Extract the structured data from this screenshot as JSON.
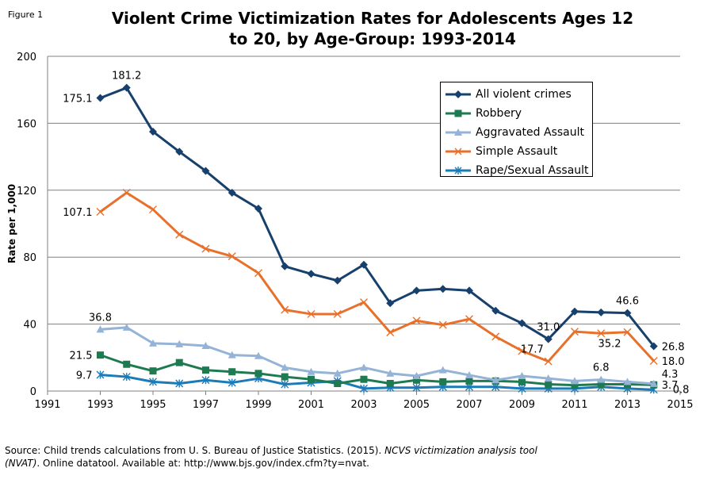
{
  "figure_label": "Figure 1",
  "title_line1": "Violent Crime Victimization Rates for Adolescents Ages 12",
  "title_line2": "to 20, by Age-Group: 1993-2014",
  "source_prefix": "Source: Child trends calculations from U. S. Bureau of Justice Statistics. (2015). ",
  "source_italic1": "NCVS victimization analysis tool",
  "source_italic2": "(NVAT)",
  "source_suffix": ". Online datatool. Available at: http://www.bjs.gov/index.cfm?ty=nvat.",
  "chart_data": {
    "type": "line",
    "title": "Violent Crime Victimization Rates for Adolescents Ages 12 to 20, by Age-Group: 1993-2014",
    "xlabel": "",
    "ylabel": "Rate per 1,000",
    "xlim": [
      1991,
      2015
    ],
    "ylim": [
      0,
      200
    ],
    "x_ticks": [
      "1991",
      "1993",
      "1995",
      "1997",
      "1999",
      "2001",
      "2003",
      "2005",
      "2007",
      "2009",
      "2011",
      "2013",
      "2015"
    ],
    "y_ticks": [
      "0",
      "40",
      "80",
      "120",
      "160",
      "200"
    ],
    "grid": "horizontal",
    "legend_position": "top-right",
    "x": [
      1993,
      1994,
      1995,
      1996,
      1997,
      1998,
      1999,
      2000,
      2001,
      2002,
      2003,
      2004,
      2005,
      2006,
      2007,
      2008,
      2009,
      2010,
      2011,
      2012,
      2013,
      2014
    ],
    "series": [
      {
        "name": "All violent crimes",
        "color": "#17406d",
        "marker": "diamond",
        "values": [
          175.1,
          181.2,
          155,
          143,
          131.5,
          118.5,
          109,
          74.5,
          70,
          66,
          75.5,
          52.5,
          60,
          61,
          60,
          48,
          40.5,
          31.0,
          47.5,
          47,
          46.6,
          26.8
        ]
      },
      {
        "name": "Robbery",
        "color": "#1e7a50",
        "marker": "square",
        "values": [
          21.5,
          16,
          12,
          17,
          12.5,
          11.5,
          10.5,
          8.5,
          7,
          4.5,
          7,
          4.5,
          6.5,
          5.5,
          6,
          6,
          5.5,
          4,
          3.5,
          4,
          4,
          3.7
        ]
      },
      {
        "name": "Aggravated Assault",
        "color": "#94b3d7",
        "marker": "triangle",
        "values": [
          36.8,
          38,
          28.5,
          28,
          27,
          21.5,
          21,
          14,
          11.5,
          10.5,
          14,
          10.5,
          9,
          12.5,
          9.5,
          6.5,
          9,
          7.5,
          6,
          6.8,
          5.5,
          4.3
        ]
      },
      {
        "name": "Simple Assault",
        "color": "#e8702a",
        "marker": "x",
        "values": [
          107.1,
          118.5,
          108.5,
          93.5,
          85,
          80.5,
          70.5,
          48.5,
          46,
          46,
          53,
          35,
          42,
          39.5,
          43,
          32.5,
          24,
          17.7,
          35.5,
          34.5,
          35.2,
          18.0
        ]
      },
      {
        "name": "Rape/Sexual Assault",
        "color": "#1b7bb8",
        "marker": "star",
        "values": [
          9.7,
          8.5,
          5.5,
          4.5,
          6.5,
          5,
          7.5,
          4,
          5,
          6,
          1.5,
          2,
          2,
          2.5,
          2.5,
          2.5,
          1.5,
          1.5,
          1.5,
          2.5,
          1.5,
          0.8
        ]
      }
    ],
    "data_labels": [
      {
        "series": 0,
        "year": 1993,
        "text": "175.1",
        "pos": "left"
      },
      {
        "series": 0,
        "year": 1994,
        "text": "181.2",
        "pos": "above"
      },
      {
        "series": 3,
        "year": 1993,
        "text": "107.1",
        "pos": "left"
      },
      {
        "series": 2,
        "year": 1993,
        "text": "36.8",
        "pos": "above"
      },
      {
        "series": 1,
        "year": 1993,
        "text": "21.5",
        "pos": "left"
      },
      {
        "series": 4,
        "year": 1993,
        "text": "9.7",
        "pos": "left"
      },
      {
        "series": 0,
        "year": 2010,
        "text": "31.0",
        "pos": "above"
      },
      {
        "series": 3,
        "year": 2010,
        "text": "17.7",
        "pos": "above-left"
      },
      {
        "series": 0,
        "year": 2013,
        "text": "46.6",
        "pos": "above"
      },
      {
        "series": 3,
        "year": 2013,
        "text": "35.2",
        "pos": "below"
      },
      {
        "series": 2,
        "year": 2012,
        "text": "6.8",
        "pos": "above"
      },
      {
        "series": 0,
        "year": 2014,
        "text": "26.8",
        "pos": "right"
      },
      {
        "series": 3,
        "year": 2014,
        "text": "18.0",
        "pos": "right"
      },
      {
        "series": 2,
        "year": 2014,
        "text": "4.3",
        "pos": "right-up"
      },
      {
        "series": 1,
        "year": 2014,
        "text": "3.7",
        "pos": "right"
      },
      {
        "series": 4,
        "year": 2014,
        "text": "0.8",
        "pos": "right-down"
      }
    ]
  }
}
